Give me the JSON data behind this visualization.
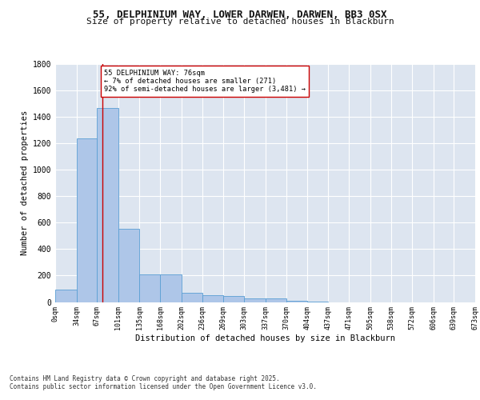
{
  "title_line1": "55, DELPHINIUM WAY, LOWER DARWEN, DARWEN, BB3 0SX",
  "title_line2": "Size of property relative to detached houses in Blackburn",
  "xlabel": "Distribution of detached houses by size in Blackburn",
  "ylabel": "Number of detached properties",
  "bar_edges": [
    0,
    34,
    67,
    101,
    135,
    168,
    202,
    236,
    269,
    303,
    337,
    370,
    404,
    437,
    471,
    505,
    538,
    572,
    606,
    639,
    673
  ],
  "bar_heights": [
    95,
    1235,
    1470,
    555,
    210,
    210,
    70,
    50,
    45,
    30,
    25,
    10,
    5,
    0,
    0,
    0,
    0,
    0,
    0,
    0
  ],
  "bar_color": "#aec6e8",
  "bar_edgecolor": "#5a9fd4",
  "tick_labels": [
    "0sqm",
    "34sqm",
    "67sqm",
    "101sqm",
    "135sqm",
    "168sqm",
    "202sqm",
    "236sqm",
    "269sqm",
    "303sqm",
    "337sqm",
    "370sqm",
    "404sqm",
    "437sqm",
    "471sqm",
    "505sqm",
    "538sqm",
    "572sqm",
    "606sqm",
    "639sqm",
    "673sqm"
  ],
  "vline_x": 76,
  "vline_color": "#cc0000",
  "annotation_text": "55 DELPHINIUM WAY: 76sqm\n← 7% of detached houses are smaller (271)\n92% of semi-detached houses are larger (3,481) →",
  "annotation_box_color": "#ffffff",
  "annotation_box_edgecolor": "#cc0000",
  "ylim": [
    0,
    1800
  ],
  "yticks": [
    0,
    200,
    400,
    600,
    800,
    1000,
    1200,
    1400,
    1600,
    1800
  ],
  "bg_color": "#dde5f0",
  "fig_bg_color": "#ffffff",
  "footer_line1": "Contains HM Land Registry data © Crown copyright and database right 2025.",
  "footer_line2": "Contains public sector information licensed under the Open Government Licence v3.0."
}
